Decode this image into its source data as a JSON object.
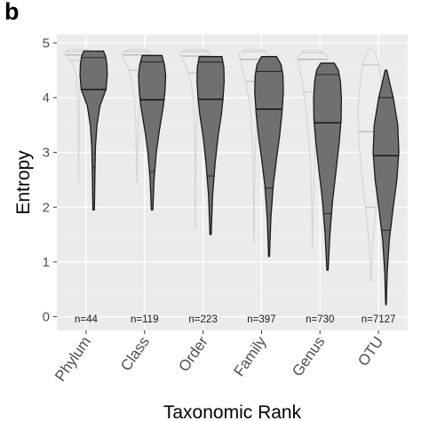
{
  "panel_label": "b",
  "colors": {
    "panel_bg": "#ebebeb",
    "grid_major": "#ffffff",
    "grid_minor": "#f4f4f4",
    "light_fill": "#ececec",
    "light_stroke": "#d6d6d6",
    "light_line": "#b8b8b8",
    "dark_fill": "#707070",
    "dark_stroke": "#1a1a1a",
    "dark_line": "#111111"
  },
  "chart_data": {
    "type": "violin",
    "xlabel": "Taxonomic Rank",
    "ylabel": "Entropy",
    "ylim": [
      -0.25,
      5.15
    ],
    "yticks": [
      0,
      1,
      2,
      3,
      4,
      5
    ],
    "grid": true,
    "categories": [
      "Phylum",
      "Class",
      "Order",
      "Family",
      "Genus",
      "OTU"
    ],
    "counts": [
      "n=44",
      "n=119",
      "n=223",
      "n=397",
      "n=730",
      "n=7127"
    ],
    "series": [
      {
        "style": "light",
        "violins": [
          {
            "median": 4.78,
            "q1": 4.68,
            "q3": 4.84,
            "profile": [
              [
                2.45,
                0.01
              ],
              [
                3.0,
                0.02
              ],
              [
                3.6,
                0.04
              ],
              [
                4.1,
                0.08
              ],
              [
                4.4,
                0.15
              ],
              [
                4.6,
                0.35
              ],
              [
                4.75,
                0.75
              ],
              [
                4.82,
                1.0
              ],
              [
                4.88,
                0.6
              ]
            ]
          },
          {
            "median": 4.78,
            "q1": 4.5,
            "q3": 4.84,
            "profile": [
              [
                2.45,
                0.02
              ],
              [
                3.0,
                0.04
              ],
              [
                3.6,
                0.09
              ],
              [
                4.0,
                0.18
              ],
              [
                4.3,
                0.33
              ],
              [
                4.55,
                0.6
              ],
              [
                4.75,
                0.95
              ],
              [
                4.82,
                1.0
              ],
              [
                4.88,
                0.6
              ]
            ]
          },
          {
            "median": 4.76,
            "q1": 4.45,
            "q3": 4.84,
            "profile": [
              [
                1.6,
                0.01
              ],
              [
                2.5,
                0.02
              ],
              [
                3.3,
                0.05
              ],
              [
                3.9,
                0.12
              ],
              [
                4.3,
                0.3
              ],
              [
                4.55,
                0.6
              ],
              [
                4.75,
                0.95
              ],
              [
                4.82,
                1.0
              ],
              [
                4.88,
                0.6
              ]
            ]
          },
          {
            "median": 4.7,
            "q1": 4.3,
            "q3": 4.84,
            "profile": [
              [
                1.35,
                0.01
              ],
              [
                2.2,
                0.03
              ],
              [
                3.0,
                0.08
              ],
              [
                3.6,
                0.18
              ],
              [
                4.0,
                0.35
              ],
              [
                4.3,
                0.55
              ],
              [
                4.6,
                0.85
              ],
              [
                4.78,
                1.0
              ],
              [
                4.88,
                0.6
              ]
            ]
          },
          {
            "median": 4.7,
            "q1": 4.1,
            "q3": 4.82,
            "profile": [
              [
                1.25,
                0.01
              ],
              [
                2.0,
                0.05
              ],
              [
                2.8,
                0.12
              ],
              [
                3.3,
                0.25
              ],
              [
                3.8,
                0.42
              ],
              [
                4.2,
                0.62
              ],
              [
                4.55,
                0.85
              ],
              [
                4.75,
                1.0
              ],
              [
                4.86,
                0.55
              ]
            ]
          },
          {
            "median": 3.38,
            "q1": 2.0,
            "q3": 4.6,
            "profile": [
              [
                0.65,
                0.02
              ],
              [
                1.3,
                0.1
              ],
              [
                2.0,
                0.35
              ],
              [
                2.6,
                0.6
              ],
              [
                3.2,
                0.8
              ],
              [
                3.8,
                0.85
              ],
              [
                4.3,
                0.7
              ],
              [
                4.6,
                0.55
              ],
              [
                4.8,
                0.3
              ],
              [
                4.88,
                0.1
              ]
            ]
          }
        ]
      },
      {
        "style": "dark",
        "violins": [
          {
            "median": 4.15,
            "q1": 2.72,
            "q3": 4.73,
            "profile": [
              [
                1.95,
                0.05
              ],
              [
                2.5,
                0.08
              ],
              [
                3.1,
                0.12
              ],
              [
                3.5,
                0.22
              ],
              [
                3.85,
                0.42
              ],
              [
                4.15,
                0.82
              ],
              [
                4.4,
                0.9
              ],
              [
                4.6,
                0.88
              ],
              [
                4.75,
                0.8
              ],
              [
                4.85,
                0.65
              ]
            ]
          },
          {
            "median": 3.96,
            "q1": 2.65,
            "q3": 4.65,
            "profile": [
              [
                1.95,
                0.05
              ],
              [
                2.5,
                0.13
              ],
              [
                3.0,
                0.28
              ],
              [
                3.4,
                0.48
              ],
              [
                3.8,
                0.72
              ],
              [
                4.1,
                0.85
              ],
              [
                4.4,
                0.9
              ],
              [
                4.6,
                0.82
              ],
              [
                4.77,
                0.65
              ]
            ]
          },
          {
            "median": 3.97,
            "q1": 2.57,
            "q3": 4.65,
            "profile": [
              [
                1.5,
                0.04
              ],
              [
                2.2,
                0.13
              ],
              [
                2.8,
                0.3
              ],
              [
                3.3,
                0.5
              ],
              [
                3.7,
                0.72
              ],
              [
                4.0,
                0.83
              ],
              [
                4.3,
                0.9
              ],
              [
                4.55,
                0.88
              ],
              [
                4.75,
                0.75
              ]
            ]
          },
          {
            "median": 3.79,
            "q1": 2.35,
            "q3": 4.48,
            "profile": [
              [
                1.1,
                0.03
              ],
              [
                1.8,
                0.12
              ],
              [
                2.4,
                0.28
              ],
              [
                2.9,
                0.5
              ],
              [
                3.3,
                0.7
              ],
              [
                3.7,
                0.85
              ],
              [
                4.1,
                0.95
              ],
              [
                4.4,
                0.92
              ],
              [
                4.6,
                0.8
              ],
              [
                4.75,
                0.5
              ]
            ]
          },
          {
            "median": 3.54,
            "q1": 1.88,
            "q3": 4.42,
            "profile": [
              [
                0.85,
                0.04
              ],
              [
                1.5,
                0.16
              ],
              [
                2.1,
                0.33
              ],
              [
                2.7,
                0.58
              ],
              [
                3.2,
                0.78
              ],
              [
                3.6,
                0.9
              ],
              [
                4.0,
                0.92
              ],
              [
                4.3,
                0.85
              ],
              [
                4.5,
                0.72
              ],
              [
                4.63,
                0.45
              ]
            ]
          },
          {
            "median": 2.94,
            "q1": 1.58,
            "q3": 4.0,
            "profile": [
              [
                0.22,
                0.02
              ],
              [
                0.8,
                0.08
              ],
              [
                1.4,
                0.22
              ],
              [
                2.0,
                0.48
              ],
              [
                2.5,
                0.72
              ],
              [
                3.0,
                0.85
              ],
              [
                3.5,
                0.78
              ],
              [
                4.0,
                0.48
              ],
              [
                4.3,
                0.22
              ],
              [
                4.5,
                0.06
              ]
            ]
          }
        ]
      }
    ]
  }
}
